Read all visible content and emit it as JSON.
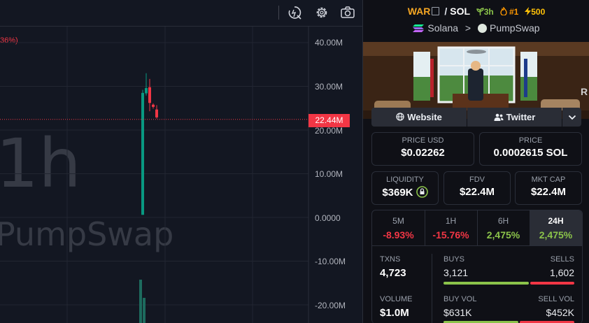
{
  "chart": {
    "legend_change": "36%)",
    "interval_watermark": "1h",
    "dex_watermark": "PumpSwap",
    "current_price_tag": "22.44M",
    "y_axis_labels": [
      "40.00M",
      "30.00M",
      "20.00M",
      "10.00M",
      "0.0000",
      "-10.00M",
      "-20.00M"
    ],
    "icons": [
      "replay-icon",
      "settings-gear-icon",
      "camera-icon"
    ]
  },
  "chart_data": {
    "type": "candlestick",
    "y_ticks": [
      40000000,
      30000000,
      20000000,
      10000000,
      0,
      -10000000,
      -20000000
    ],
    "ylim": [
      -24000000,
      44000000
    ],
    "current_value": 22440000,
    "candles": [
      {
        "dir": "up",
        "open": 600000,
        "close": 28500000,
        "high": 29200000,
        "low": 600000
      },
      {
        "dir": "up",
        "open": 28400000,
        "close": 29600000,
        "high": 33000000,
        "low": 27900000
      },
      {
        "dir": "down",
        "open": 29800000,
        "close": 26200000,
        "high": 31700000,
        "low": 24300000
      },
      {
        "dir": "down",
        "open": 25800000,
        "close": 25300000,
        "high": 26100000,
        "low": 24900000
      },
      {
        "dir": "down",
        "open": 24700000,
        "close": 22900000,
        "high": 25700000,
        "low": 22600000
      }
    ],
    "volume_bars": [
      {
        "dir": "up",
        "relative": 1.0
      },
      {
        "dir": "up",
        "relative": 0.58
      }
    ]
  },
  "pair": {
    "base": "WAR",
    "separator": "/",
    "quote": "SOL",
    "age": "3h",
    "rank": "#1",
    "boosts": "500",
    "chain": "Solana",
    "chevron": ">",
    "dex": "PumpSwap"
  },
  "links": {
    "website": "Website",
    "twitter": "Twitter"
  },
  "price_usd": {
    "label": "PRICE USD",
    "value": "$0.02262"
  },
  "price_native": {
    "label": "PRICE",
    "value": "0.0002615 SOL"
  },
  "liquidity": {
    "label": "LIQUIDITY",
    "value": "$369K"
  },
  "fdv": {
    "label": "FDV",
    "value": "$22.4M"
  },
  "mkt_cap": {
    "label": "MKT CAP",
    "value": "$22.4M"
  },
  "timeframes": [
    {
      "label": "5M",
      "value": "-8.93%"
    },
    {
      "label": "1H",
      "value": "-15.76%"
    },
    {
      "label": "6H",
      "value": "2,475%"
    },
    {
      "label": "24H",
      "value": "2,475%"
    }
  ],
  "txns": {
    "label": "TXNS",
    "value": "4,723",
    "buys_label": "BUYS",
    "buys": "3,121",
    "sells_label": "SELLS",
    "sells": "1,602",
    "buy_ratio": 0.66
  },
  "volume": {
    "label": "VOLUME",
    "value": "$1.0M",
    "buy_label": "BUY VOL",
    "buy": "$631K",
    "sell_label": "SELL VOL",
    "sell": "$452K",
    "buy_ratio": 0.58
  },
  "colors": {
    "up": "#089981",
    "down": "#f23645",
    "accent": "#f5a623",
    "positive": "#8bc34a"
  }
}
